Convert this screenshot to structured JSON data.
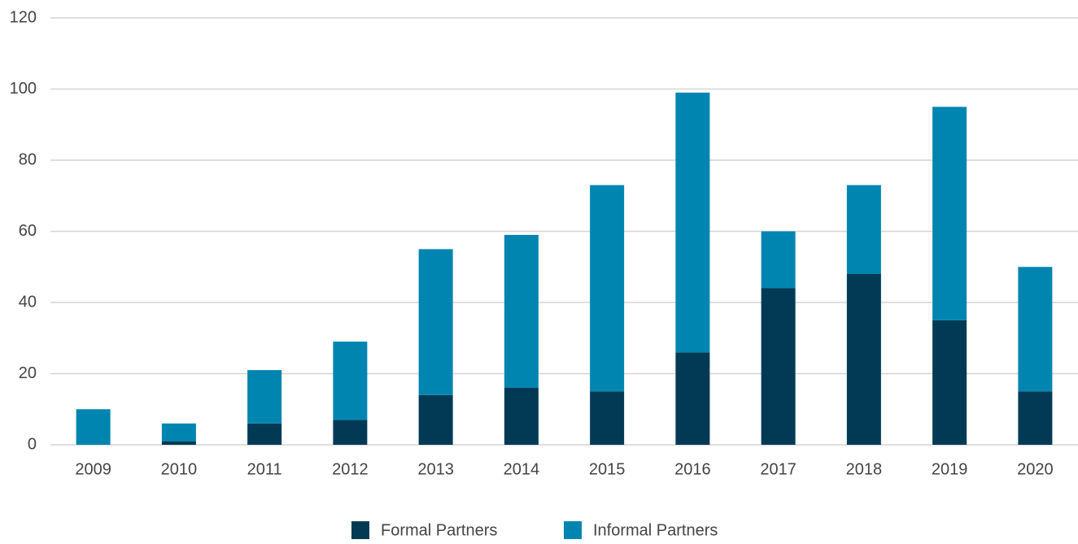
{
  "chart_data": {
    "type": "stacked_bar",
    "categories": [
      "2009",
      "2010",
      "2011",
      "2012",
      "2013",
      "2014",
      "2015",
      "2016",
      "2017",
      "2018",
      "2019",
      "2020"
    ],
    "series": [
      {
        "name": "Formal Partners",
        "color": "#023a56",
        "values": [
          0,
          1,
          6,
          7,
          14,
          16,
          15,
          26,
          44,
          48,
          35,
          15
        ]
      },
      {
        "name": "Informal Partners",
        "color": "#0085b0",
        "values": [
          10,
          5,
          15,
          22,
          41,
          43,
          58,
          73,
          16,
          25,
          60,
          35
        ]
      }
    ],
    "ylim": [
      0,
      120
    ],
    "yticks": [
      0,
      20,
      40,
      60,
      80,
      100,
      120
    ],
    "grid": true,
    "legend": "bottom"
  }
}
